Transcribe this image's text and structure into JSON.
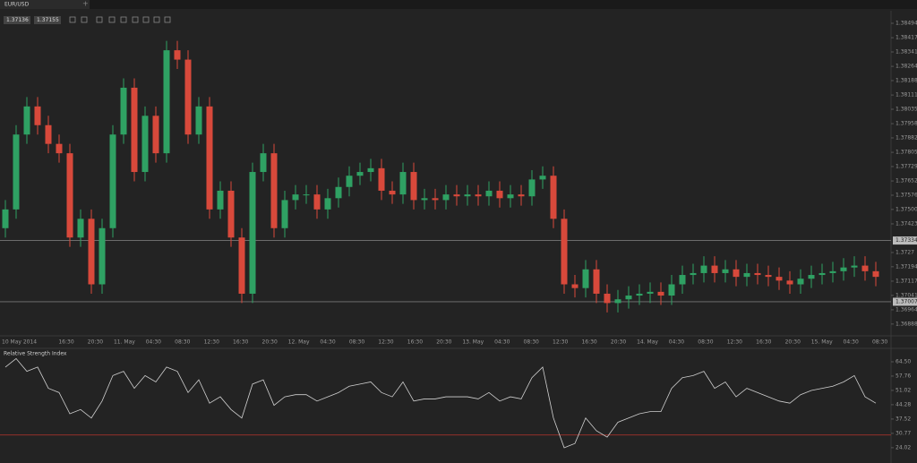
{
  "tab": {
    "label": "EUR/USD"
  },
  "quote": {
    "bid": 1.37136,
    "ask": 1.37155
  },
  "chart_data": [
    {
      "type": "candlestick",
      "x_labels": [
        "10 May 2014",
        "16:30",
        "20:30",
        "11. May",
        "04:30",
        "08:30",
        "12:30",
        "16:30",
        "20:30",
        "12. May",
        "04:30",
        "08:30",
        "12:30",
        "16:30",
        "20:30",
        "13. May",
        "04:30",
        "08:30",
        "12:30",
        "16:30",
        "20:30",
        "14. May",
        "04:30",
        "08:30",
        "12:30",
        "16:30",
        "20:30",
        "15. May",
        "04:30",
        "08:30"
      ],
      "open": [
        1.374,
        1.375,
        1.379,
        1.3805,
        1.3795,
        1.3785,
        1.378,
        1.3735,
        1.3745,
        1.371,
        1.374,
        1.379,
        1.3815,
        1.377,
        1.38,
        1.378,
        1.3835,
        1.383,
        1.379,
        1.3805,
        1.375,
        1.376,
        1.3735,
        1.3705,
        1.377,
        1.378,
        1.374,
        1.3755,
        1.3758,
        1.3758,
        1.375,
        1.3756,
        1.3762,
        1.3768,
        1.377,
        1.3772,
        1.376,
        1.3758,
        1.377,
        1.3755,
        1.3756,
        1.3755,
        1.3758,
        1.3757,
        1.3758,
        1.3757,
        1.376,
        1.3756,
        1.3758,
        1.3757,
        1.3766,
        1.3768,
        1.3745,
        1.371,
        1.3708,
        1.3718,
        1.3705,
        1.37,
        1.3702,
        1.3704,
        1.3705,
        1.3706,
        1.3704,
        1.371,
        1.3715,
        1.3716,
        1.372,
        1.3716,
        1.3718,
        1.3714,
        1.3716,
        1.3715,
        1.3714,
        1.3712,
        1.371,
        1.3713,
        1.3715,
        1.3716,
        1.3717,
        1.3719,
        1.372,
        1.3717
      ],
      "high": [
        1.3755,
        1.3795,
        1.381,
        1.381,
        1.38,
        1.379,
        1.3785,
        1.375,
        1.375,
        1.3745,
        1.3795,
        1.382,
        1.382,
        1.3805,
        1.3805,
        1.384,
        1.384,
        1.3835,
        1.381,
        1.381,
        1.3765,
        1.3765,
        1.374,
        1.3775,
        1.3785,
        1.3785,
        1.376,
        1.3763,
        1.3763,
        1.3763,
        1.3761,
        1.3767,
        1.3773,
        1.3775,
        1.3777,
        1.3777,
        1.3765,
        1.3775,
        1.3775,
        1.3761,
        1.3761,
        1.3763,
        1.3763,
        1.3763,
        1.3763,
        1.3765,
        1.3765,
        1.3763,
        1.3763,
        1.3771,
        1.3773,
        1.3773,
        1.375,
        1.3715,
        1.3723,
        1.3723,
        1.371,
        1.3707,
        1.3709,
        1.371,
        1.3711,
        1.3711,
        1.3715,
        1.372,
        1.3721,
        1.3725,
        1.3725,
        1.3723,
        1.3723,
        1.3721,
        1.3721,
        1.372,
        1.3719,
        1.3717,
        1.3718,
        1.372,
        1.3721,
        1.3722,
        1.3724,
        1.3725,
        1.3725,
        1.3722
      ],
      "low": [
        1.3735,
        1.3745,
        1.3785,
        1.379,
        1.378,
        1.3775,
        1.373,
        1.373,
        1.3705,
        1.3705,
        1.3735,
        1.3785,
        1.3765,
        1.3765,
        1.3775,
        1.3775,
        1.3825,
        1.3785,
        1.3785,
        1.3745,
        1.3745,
        1.373,
        1.37,
        1.37,
        1.3765,
        1.3735,
        1.3735,
        1.375,
        1.3753,
        1.3745,
        1.3745,
        1.3751,
        1.3757,
        1.3763,
        1.3765,
        1.3755,
        1.3753,
        1.3753,
        1.375,
        1.375,
        1.375,
        1.375,
        1.3752,
        1.3752,
        1.3752,
        1.3752,
        1.3751,
        1.3751,
        1.3752,
        1.3752,
        1.3761,
        1.374,
        1.3705,
        1.3703,
        1.3703,
        1.37,
        1.3695,
        1.3695,
        1.3697,
        1.3699,
        1.37,
        1.3699,
        1.3699,
        1.3705,
        1.371,
        1.3711,
        1.3711,
        1.3711,
        1.3709,
        1.3709,
        1.371,
        1.3709,
        1.3707,
        1.3705,
        1.3705,
        1.3708,
        1.371,
        1.3711,
        1.3712,
        1.3714,
        1.3712,
        1.3709
      ],
      "close": [
        1.375,
        1.379,
        1.3805,
        1.3795,
        1.3785,
        1.378,
        1.3735,
        1.3745,
        1.371,
        1.374,
        1.379,
        1.3815,
        1.377,
        1.38,
        1.378,
        1.3835,
        1.383,
        1.379,
        1.3805,
        1.375,
        1.376,
        1.3735,
        1.3705,
        1.377,
        1.378,
        1.374,
        1.3755,
        1.3758,
        1.3758,
        1.375,
        1.3756,
        1.3762,
        1.3768,
        1.377,
        1.3772,
        1.376,
        1.3758,
        1.377,
        1.3755,
        1.3756,
        1.3755,
        1.3758,
        1.3757,
        1.3758,
        1.3757,
        1.376,
        1.3756,
        1.3758,
        1.3757,
        1.3766,
        1.3768,
        1.3745,
        1.371,
        1.3708,
        1.3718,
        1.3705,
        1.37,
        1.3702,
        1.3704,
        1.3705,
        1.3706,
        1.3704,
        1.371,
        1.3715,
        1.3716,
        1.372,
        1.3716,
        1.3718,
        1.3714,
        1.3716,
        1.3715,
        1.3714,
        1.3712,
        1.371,
        1.3713,
        1.3715,
        1.3716,
        1.3717,
        1.3719,
        1.372,
        1.3717,
        1.3714
      ],
      "up_color": "#2fa163",
      "down_color": "#d8493b",
      "ylim": [
        1.36825,
        1.38561
      ],
      "yticks": [
        1.38494,
        1.38417,
        1.38341,
        1.38264,
        1.38188,
        1.38111,
        1.38035,
        1.37958,
        1.37882,
        1.37805,
        1.37729,
        1.37652,
        1.37576,
        {
          "value": 1.375,
          "label": "1.37500"
        },
        1.37423,
        1.3727,
        1.37194,
        1.37117,
        1.37041,
        1.36964,
        1.36888
      ],
      "price_lines": [
        1.37334,
        1.37007
      ]
    },
    {
      "type": "line",
      "title": "Relative Strength Index",
      "values": [
        62,
        66,
        60,
        62,
        52,
        50,
        40,
        42,
        38,
        46,
        58,
        60,
        52,
        58,
        55,
        62,
        60,
        50,
        56,
        45,
        48,
        42,
        38,
        54,
        56,
        44,
        48,
        49,
        49,
        46,
        48,
        50,
        53,
        54,
        55,
        50,
        48,
        55,
        46,
        47,
        47,
        48,
        48,
        48,
        47,
        50,
        46,
        48,
        47,
        57,
        62,
        38,
        24,
        26,
        38,
        32,
        29,
        36,
        38,
        40,
        41,
        41,
        52,
        57,
        58,
        60,
        52,
        55,
        48,
        52,
        50,
        48,
        46,
        45,
        49,
        51,
        52,
        53,
        55,
        58,
        48,
        45
      ],
      "color": "#d0d0d0",
      "ylim": [
        16.8,
        70.4
      ],
      "yticks": [
        {
          "value": 64.5,
          "label": "64.50"
        },
        57.76,
        51.02,
        44.28,
        37.52,
        30.77,
        24.02
      ],
      "level": 30,
      "level_color": "#b8352c"
    }
  ]
}
